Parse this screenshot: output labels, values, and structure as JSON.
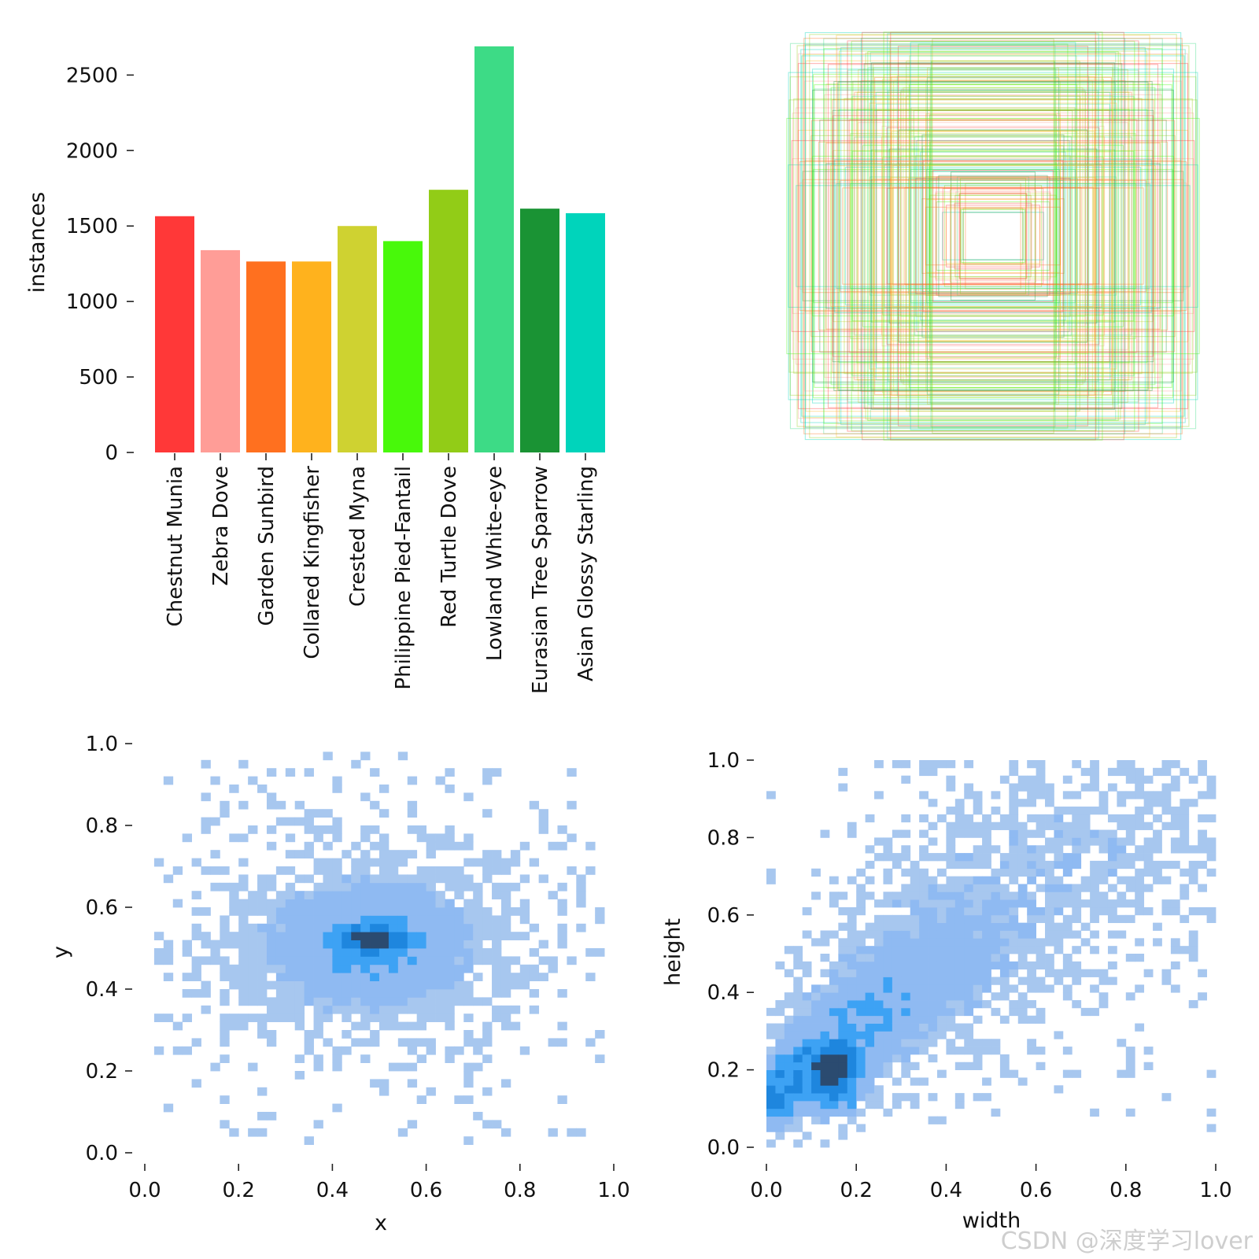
{
  "chart_data": [
    {
      "type": "bar",
      "ylabel": "instances",
      "ylim": [
        0,
        2700
      ],
      "yticks": [
        "0",
        "500",
        "1000",
        "1500",
        "2000",
        "2500"
      ],
      "categories": [
        "Chestnut Munia",
        "Zebra Dove",
        "Garden Sunbird",
        "Collared Kingfisher",
        "Crested Myna",
        "Philippine Pied-Fantail",
        "Red Turtle Dove",
        "Lowland White-eye",
        "Eurasian Tree Sparrow",
        "Asian Glossy Starling"
      ],
      "values": [
        1565,
        1340,
        1265,
        1265,
        1500,
        1400,
        1740,
        2690,
        1615,
        1585
      ],
      "colors": [
        "#ff3838",
        "#ff9d97",
        "#ff701f",
        "#ffb21d",
        "#cfd231",
        "#48f90a",
        "#92cc17",
        "#3ddb86",
        "#1a9334",
        "#00d4bb"
      ]
    },
    {
      "type": "other",
      "description_kind": "overlaid bounding boxes",
      "note": ""
    },
    {
      "type": "heatmap",
      "xlabel": "x",
      "ylabel": "y",
      "xlim": [
        0,
        1
      ],
      "ylim": [
        0,
        1
      ],
      "xticks": [
        "0.0",
        "0.2",
        "0.4",
        "0.6",
        "0.8",
        "1.0"
      ],
      "yticks": [
        "0.0",
        "0.2",
        "0.4",
        "0.6",
        "0.8",
        "1.0"
      ],
      "peak": {
        "x": 0.49,
        "y": 0.52
      },
      "spread": {
        "x": 0.09,
        "y": 0.04
      }
    },
    {
      "type": "heatmap",
      "xlabel": "width",
      "ylabel": "height",
      "xlim": [
        0,
        1
      ],
      "ylim": [
        0,
        1
      ],
      "xticks": [
        "0.0",
        "0.2",
        "0.4",
        "0.6",
        "0.8",
        "1.0"
      ],
      "yticks": [
        "0.0",
        "0.2",
        "0.4",
        "0.6",
        "0.8",
        "1.0"
      ],
      "peak": {
        "x": 0.15,
        "y": 0.25
      }
    }
  ],
  "watermark": "CSDN @深度学习lover"
}
